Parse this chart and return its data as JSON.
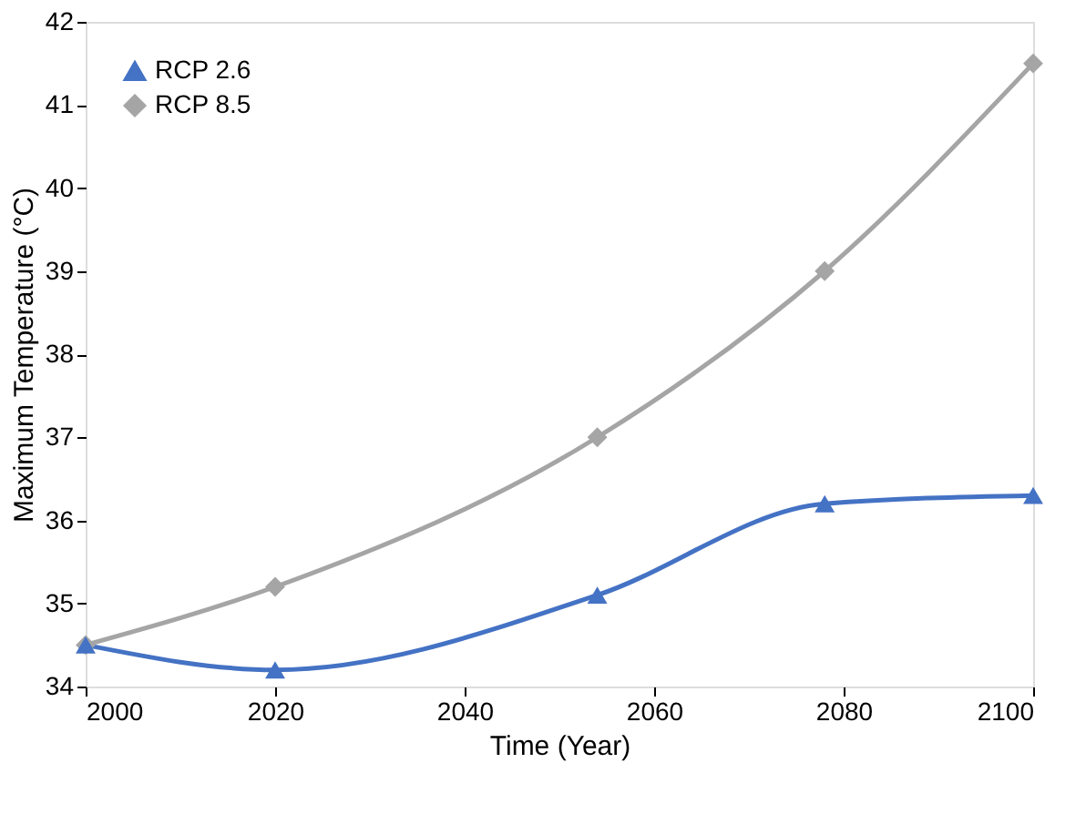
{
  "chart_data": {
    "type": "line",
    "xlabel": "Time (Year)",
    "ylabel": "Maximum Temperature (°C)",
    "x": [
      2000,
      2020,
      2054,
      2078,
      2100
    ],
    "series": [
      {
        "name": "RCP 2.6",
        "color": "#4472c4",
        "marker": "triangle",
        "values": [
          34.5,
          34.2,
          35.1,
          36.2,
          36.3
        ]
      },
      {
        "name": "RCP 8.5",
        "color": "#a5a5a5",
        "marker": "diamond",
        "values": [
          34.5,
          35.2,
          37.0,
          39.0,
          41.5
        ]
      }
    ],
    "xlim": [
      2000,
      2100
    ],
    "xticks": [
      2000,
      2020,
      2040,
      2060,
      2080,
      2100
    ],
    "ylim": [
      34,
      42
    ],
    "yticks": [
      34,
      35,
      36,
      37,
      38,
      39,
      40,
      41,
      42
    ],
    "grid": false,
    "legend": "top left",
    "line_style": "solid"
  }
}
